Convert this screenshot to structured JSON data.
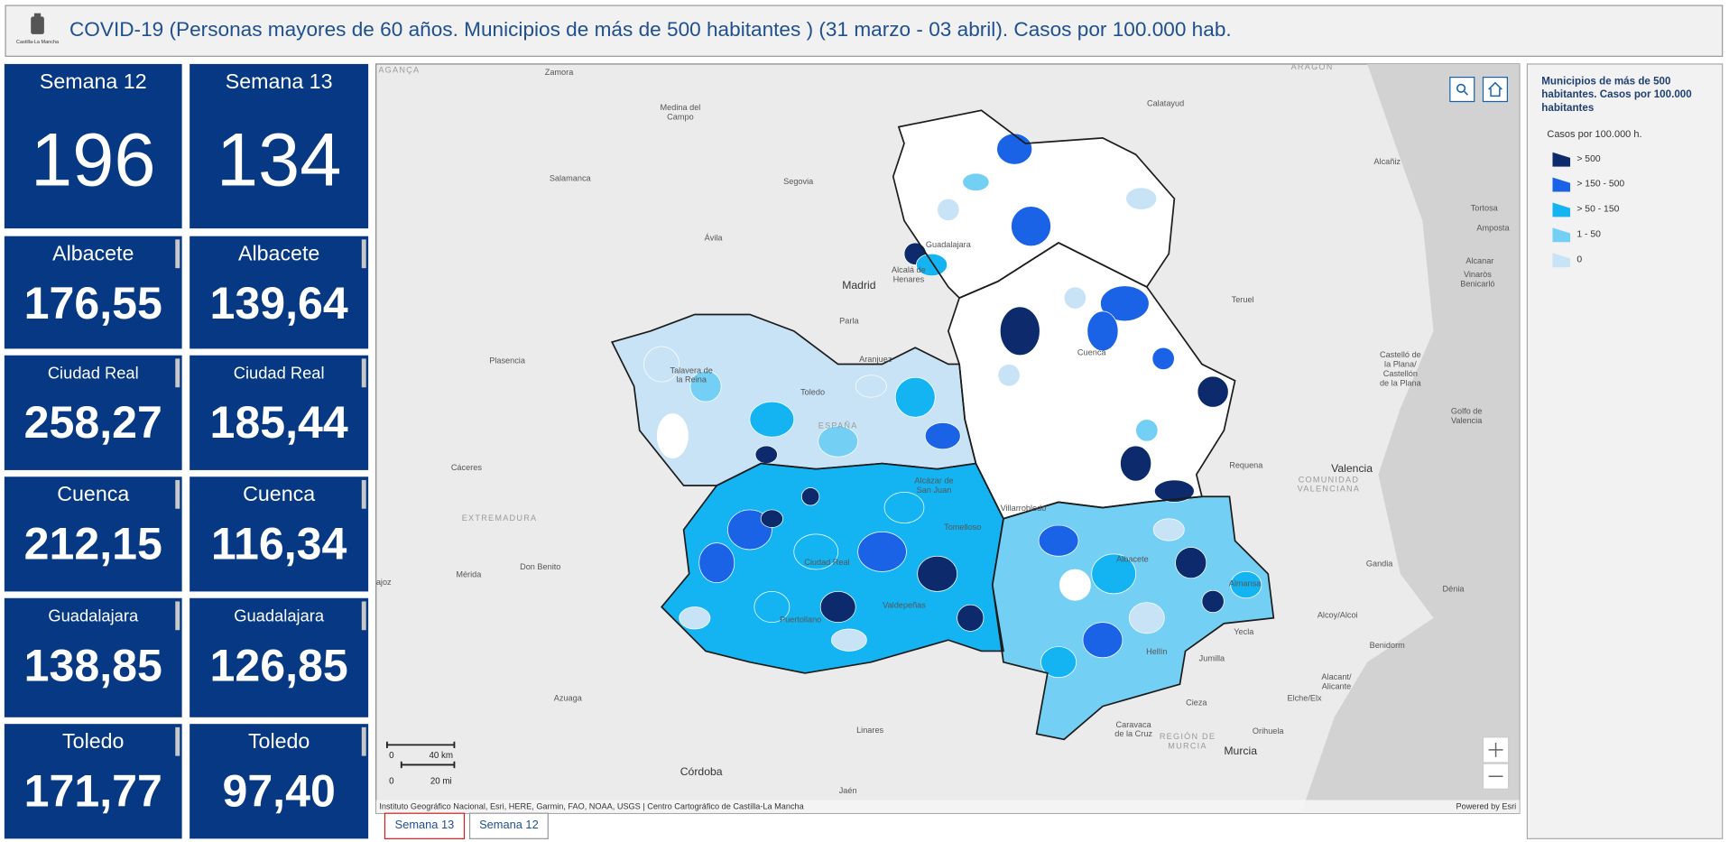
{
  "header": {
    "title": "COVID-19 (Personas mayores de 60 años. Municipios de más de 500 habitantes ) (31 marzo - 03 abril). Casos por 100.000 hab.",
    "logo_text": "Castilla-La Mancha"
  },
  "cards": [
    [
      {
        "label": "Semana 12",
        "value": "196"
      },
      {
        "label": "Albacete",
        "value": "176,55"
      },
      {
        "label": "Ciudad Real",
        "value": "258,27"
      },
      {
        "label": "Cuenca",
        "value": "212,15"
      },
      {
        "label": "Guadalajara",
        "value": "138,85"
      },
      {
        "label": "Toledo",
        "value": "171,77"
      }
    ],
    [
      {
        "label": "Semana 13",
        "value": "134"
      },
      {
        "label": "Albacete",
        "value": "139,64"
      },
      {
        "label": "Ciudad Real",
        "value": "185,44"
      },
      {
        "label": "Cuenca",
        "value": "116,34"
      },
      {
        "label": "Guadalajara",
        "value": "126,85"
      },
      {
        "label": "Toledo",
        "value": "97,40"
      }
    ]
  ],
  "map": {
    "labels": [
      "Zamora",
      [
        "Medina del",
        "Campo"
      ],
      "Salamanca",
      "Segovia",
      "Ávila",
      "Madrid",
      [
        "Alcalá de",
        "Henares"
      ],
      "Parla",
      "Plasencia",
      [
        "Talavera de",
        "la Reina"
      ],
      "Toledo",
      "Aranjuez",
      "Guadalajara",
      "Calatayud",
      "Teruel",
      "Cuenca",
      "Alcañiz",
      "Tortosa",
      "Amposta",
      "Alcanar",
      [
        "Vinaròs",
        "Benicarló"
      ],
      [
        "Castelló de",
        "la Plana/",
        "Castellón",
        "de la Plana"
      ],
      [
        "Golfo de",
        "Valencia"
      ],
      "Requena",
      "Valencia",
      [
        "COMUNIDAD",
        "VALENCIANA"
      ],
      "Cáceres",
      "EXTREMADURA",
      "Mérida",
      "Don Benito",
      [
        "Alcázar de",
        "San Juan"
      ],
      "Tomelloso",
      "Villarrobledo",
      "Ciudad Real",
      "Valdepeñas",
      "Puertollano",
      "Albacete",
      "Almansa",
      "Hellín",
      "Yecla",
      "Jumilla",
      "Gandia",
      "Dénia",
      "Alcoy/Alcoi",
      "Benidorm",
      [
        "Alacant/",
        "Alicante"
      ],
      "Elche/Elx",
      "Cieza",
      "Orihuela",
      [
        "Caravaca",
        "de la Cruz"
      ],
      [
        "REGIÓN DE",
        "MURCIA"
      ],
      "Murcia",
      "Azuaga",
      "Linares",
      "Córdoba",
      "Jaén",
      "ARAGÓN",
      "AGANÇA",
      "ajoz",
      "ESPAÑA"
    ],
    "scale": {
      "km_zero": "0",
      "km": "40 km",
      "mi_zero": "0",
      "mi": "20 mi"
    },
    "attribution": "Instituto Geográfico Nacional, Esri, HERE, Garmin, FAO, NOAA, USGS | Centro Cartográfico de Castilla-La Mancha",
    "powered_by": "Powered by Esri"
  },
  "legend": {
    "title_lines": [
      "Municipios de más de 500",
      "habitantes. Casos por 100.000",
      "habitantes"
    ],
    "subtitle": "Casos por 100.000 h.",
    "items": [
      {
        "label": "> 500",
        "color": "#0c2a6c"
      },
      {
        "label": "> 150 - 500",
        "color": "#1a62e6"
      },
      {
        "label": "> 50 - 150",
        "color": "#14b4f2"
      },
      {
        "label": "1 - 50",
        "color": "#74cff4"
      },
      {
        "label": "0",
        "color": "#c8e3f6"
      }
    ]
  },
  "tabs": [
    "Semana 13",
    "Semana 12"
  ]
}
